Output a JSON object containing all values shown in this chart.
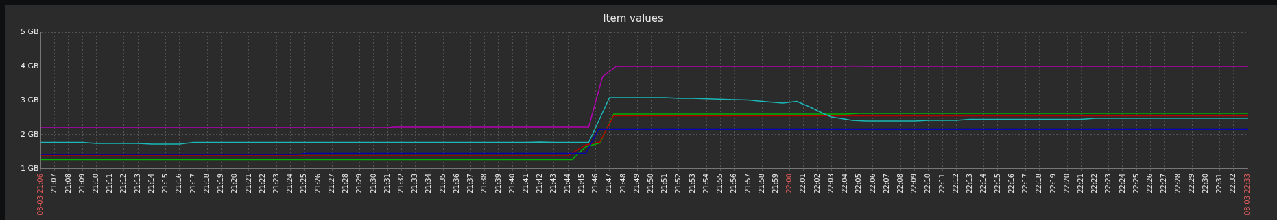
{
  "chart_data": {
    "type": "line",
    "title": "Item values",
    "grid": true,
    "legend": false,
    "marker": "none",
    "line_style": "solid",
    "xlim": [
      21.1,
      22.55
    ],
    "ylim": [
      1,
      5
    ],
    "yticks": [
      {
        "value": 1,
        "label": "1 GB"
      },
      {
        "value": 2,
        "label": "2 GB"
      },
      {
        "value": 3,
        "label": "3 GB"
      },
      {
        "value": 4,
        "label": "4 GB"
      },
      {
        "value": 5,
        "label": "5 GB"
      }
    ],
    "xticks": [
      {
        "value": 21.1,
        "label": "08-03 21:06"
      },
      {
        "value": 21.1167,
        "label": "21:07"
      },
      {
        "value": 21.1333,
        "label": "21:08"
      },
      {
        "value": 21.15,
        "label": "21:09"
      },
      {
        "value": 21.1667,
        "label": "21:10"
      },
      {
        "value": 21.1833,
        "label": "21:11"
      },
      {
        "value": 21.2,
        "label": "21:12"
      },
      {
        "value": 21.2167,
        "label": "21:13"
      },
      {
        "value": 21.2333,
        "label": "21:14"
      },
      {
        "value": 21.25,
        "label": "21:15"
      },
      {
        "value": 21.2667,
        "label": "21:16"
      },
      {
        "value": 21.2833,
        "label": "21:17"
      },
      {
        "value": 21.3,
        "label": "21:18"
      },
      {
        "value": 21.3167,
        "label": "21:19"
      },
      {
        "value": 21.3333,
        "label": "21:20"
      },
      {
        "value": 21.35,
        "label": "21:21"
      },
      {
        "value": 21.3667,
        "label": "21:22"
      },
      {
        "value": 21.3833,
        "label": "21:23"
      },
      {
        "value": 21.4,
        "label": "21:24"
      },
      {
        "value": 21.4167,
        "label": "21:25"
      },
      {
        "value": 21.4333,
        "label": "21:26"
      },
      {
        "value": 21.45,
        "label": "21:27"
      },
      {
        "value": 21.4667,
        "label": "21:28"
      },
      {
        "value": 21.4833,
        "label": "21:29"
      },
      {
        "value": 21.5,
        "label": "21:30"
      },
      {
        "value": 21.5167,
        "label": "21:31"
      },
      {
        "value": 21.5333,
        "label": "21:32"
      },
      {
        "value": 21.55,
        "label": "21:33"
      },
      {
        "value": 21.5667,
        "label": "21:34"
      },
      {
        "value": 21.5833,
        "label": "21:35"
      },
      {
        "value": 21.6,
        "label": "21:36"
      },
      {
        "value": 21.6167,
        "label": "21:37"
      },
      {
        "value": 21.6333,
        "label": "21:38"
      },
      {
        "value": 21.65,
        "label": "21:39"
      },
      {
        "value": 21.6667,
        "label": "21:40"
      },
      {
        "value": 21.6833,
        "label": "21:41"
      },
      {
        "value": 21.7,
        "label": "21:42"
      },
      {
        "value": 21.7167,
        "label": "21:43"
      },
      {
        "value": 21.7333,
        "label": "21:44"
      },
      {
        "value": 21.75,
        "label": "21:45"
      },
      {
        "value": 21.7667,
        "label": "21:46"
      },
      {
        "value": 21.7833,
        "label": "21:47"
      },
      {
        "value": 21.8,
        "label": "21:48"
      },
      {
        "value": 21.8167,
        "label": "21:49"
      },
      {
        "value": 21.8333,
        "label": "21:50"
      },
      {
        "value": 21.85,
        "label": "21:51"
      },
      {
        "value": 21.8667,
        "label": "21:52"
      },
      {
        "value": 21.8833,
        "label": "21:53"
      },
      {
        "value": 21.9,
        "label": "21:54"
      },
      {
        "value": 21.9167,
        "label": "21:55"
      },
      {
        "value": 21.9333,
        "label": "21:56"
      },
      {
        "value": 21.95,
        "label": "21:57"
      },
      {
        "value": 21.9667,
        "label": "21:58"
      },
      {
        "value": 21.9833,
        "label": "21:59"
      },
      {
        "value": 22,
        "label": "22:00"
      },
      {
        "value": 22.0167,
        "label": "22:01"
      },
      {
        "value": 22.0333,
        "label": "22:02"
      },
      {
        "value": 22.05,
        "label": "22:03"
      },
      {
        "value": 22.0667,
        "label": "22:04"
      },
      {
        "value": 22.0833,
        "label": "22:05"
      },
      {
        "value": 22.1,
        "label": "22:06"
      },
      {
        "value": 22.1167,
        "label": "22:07"
      },
      {
        "value": 22.1333,
        "label": "22:08"
      },
      {
        "value": 22.15,
        "label": "22:09"
      },
      {
        "value": 22.1667,
        "label": "22:10"
      },
      {
        "value": 22.1833,
        "label": "22:11"
      },
      {
        "value": 22.2,
        "label": "22:12"
      },
      {
        "value": 22.2167,
        "label": "22:13"
      },
      {
        "value": 22.2333,
        "label": "22:14"
      },
      {
        "value": 22.25,
        "label": "22:15"
      },
      {
        "value": 22.2667,
        "label": "22:16"
      },
      {
        "value": 22.2833,
        "label": "22:17"
      },
      {
        "value": 22.3,
        "label": "22:18"
      },
      {
        "value": 22.3167,
        "label": "22:19"
      },
      {
        "value": 22.3333,
        "label": "22:20"
      },
      {
        "value": 22.35,
        "label": "22:21"
      },
      {
        "value": 22.3667,
        "label": "22:22"
      },
      {
        "value": 22.3833,
        "label": "22:23"
      },
      {
        "value": 22.4,
        "label": "22:24"
      },
      {
        "value": 22.4167,
        "label": "22:25"
      },
      {
        "value": 22.4333,
        "label": "22:26"
      },
      {
        "value": 22.45,
        "label": "22:27"
      },
      {
        "value": 22.4667,
        "label": "22:28"
      },
      {
        "value": 22.4833,
        "label": "22:29"
      },
      {
        "value": 22.5,
        "label": "22:30"
      },
      {
        "value": 22.5167,
        "label": "22:31"
      },
      {
        "value": 22.5333,
        "label": "22:32"
      },
      {
        "value": 22.55,
        "label": "08-03 22:33"
      }
    ],
    "series": [
      {
        "color": "#b400b4",
        "x": [
          21.1,
          21.5167,
          21.525,
          21.7583,
          21.775,
          21.7917,
          22.0667,
          22.075,
          22.0917,
          22.55
        ],
        "values": [
          2.2,
          2.2,
          2.22,
          2.22,
          3.7,
          4.0,
          4.0,
          4.01,
          4.0,
          4.0
        ]
      },
      {
        "color": "#1cb8b8",
        "x": [
          21.1,
          21.15,
          21.1667,
          21.2167,
          21.2333,
          21.2667,
          21.2833,
          21.6833,
          21.7,
          21.7167,
          21.7583,
          21.7833,
          21.85,
          21.8667,
          21.8833,
          21.9333,
          21.95,
          21.9667,
          21.9917,
          22.0083,
          22.025,
          22.0417,
          22.05,
          22.075,
          22.0917,
          22.15,
          22.1667,
          22.2,
          22.2167,
          22.35,
          22.3667,
          22.55
        ],
        "values": [
          1.77,
          1.77,
          1.74,
          1.74,
          1.72,
          1.72,
          1.77,
          1.77,
          1.78,
          1.77,
          1.77,
          3.08,
          3.08,
          3.06,
          3.06,
          3.02,
          3.01,
          2.97,
          2.92,
          2.97,
          2.8,
          2.6,
          2.52,
          2.42,
          2.4,
          2.4,
          2.42,
          2.42,
          2.45,
          2.45,
          2.48,
          2.48
        ]
      },
      {
        "color": "#0000b4",
        "x": [
          21.1,
          21.4083,
          21.4167,
          21.755,
          21.77,
          22.55
        ],
        "values": [
          1.42,
          1.42,
          1.45,
          1.45,
          2.15,
          2.15
        ]
      },
      {
        "color": "#b40000",
        "x": [
          21.1,
          21.7333,
          21.755,
          21.7717,
          21.7883,
          22.55
        ],
        "values": [
          1.38,
          1.38,
          1.7,
          1.78,
          2.55,
          2.55
        ]
      },
      {
        "color": "#00b400",
        "x": [
          21.1,
          21.7383,
          21.755,
          21.7717,
          21.7883,
          22.0667,
          22.0833,
          22.55
        ],
        "values": [
          1.27,
          1.27,
          1.65,
          1.75,
          2.6,
          2.6,
          2.62,
          2.62
        ]
      }
    ]
  }
}
